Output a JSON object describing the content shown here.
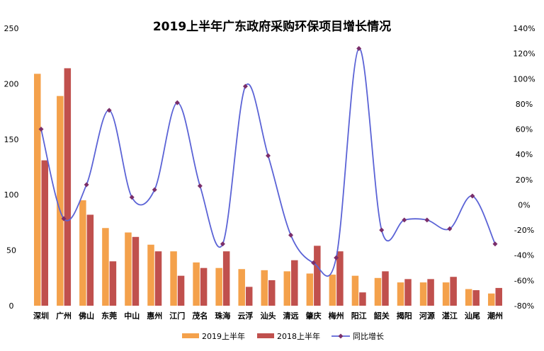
{
  "chart_data": {
    "type": "bar",
    "title": "2019上半年广东政府采购环保项目增长情况",
    "categories": [
      "深圳",
      "广州",
      "佛山",
      "东莞",
      "中山",
      "惠州",
      "江门",
      "茂名",
      "珠海",
      "云浮",
      "汕头",
      "清远",
      "肇庆",
      "梅州",
      "阳江",
      "韶关",
      "揭阳",
      "河源",
      "湛江",
      "汕尾",
      "潮州"
    ],
    "series": [
      {
        "name": "2019上半年",
        "axis": "left",
        "color": "#F4A14B",
        "values": [
          209,
          189,
          95,
          70,
          66,
          55,
          49,
          39,
          34,
          33,
          32,
          31,
          29,
          28,
          27,
          25,
          21,
          21,
          21,
          15,
          11
        ]
      },
      {
        "name": "2018上半年",
        "axis": "left",
        "color": "#C0504D",
        "values": [
          131,
          214,
          82,
          40,
          62,
          49,
          27,
          34,
          49,
          17,
          23,
          41,
          54,
          49,
          12,
          31,
          24,
          24,
          26,
          14,
          16
        ]
      },
      {
        "name": "同比增长",
        "axis": "right",
        "type": "line",
        "color": "#5B63D6",
        "values": [
          60,
          -11,
          16,
          75,
          6,
          12,
          81,
          15,
          -31,
          94,
          39,
          -24,
          -46,
          -42,
          124,
          -20,
          -12,
          -12,
          -19,
          7,
          -31
        ]
      }
    ],
    "y_left": {
      "min": 0,
      "max": 250,
      "ticks": [
        "0",
        "50",
        "100",
        "150",
        "200",
        "250"
      ]
    },
    "y_right": {
      "min": -80,
      "max": 140,
      "ticks": [
        "-80%",
        "-60%",
        "-40%",
        "-20%",
        "0%",
        "20%",
        "40%",
        "60%",
        "80%",
        "100%",
        "120%",
        "140%"
      ]
    },
    "grid": false,
    "legend_position": "bottom"
  }
}
